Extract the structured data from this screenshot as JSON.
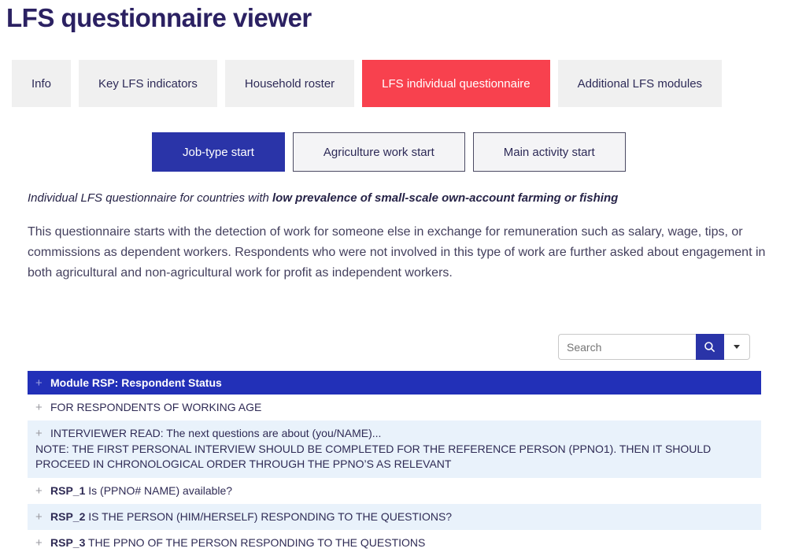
{
  "page": {
    "title": "LFS questionnaire viewer"
  },
  "tabs": [
    {
      "label": "Info",
      "active": false
    },
    {
      "label": "Key LFS indicators",
      "active": false
    },
    {
      "label": "Household roster",
      "active": false
    },
    {
      "label": "LFS individual questionnaire",
      "active": true
    },
    {
      "label": "Additional LFS modules",
      "active": false
    }
  ],
  "start_buttons": [
    {
      "label": "Job-type start",
      "active": true
    },
    {
      "label": "Agriculture work start",
      "active": false
    },
    {
      "label": "Main activity start",
      "active": false
    }
  ],
  "intro": {
    "lead_regular": "Individual LFS questionnaire for countries with ",
    "lead_bold": "low prevalence of small-scale own-account farming or fishing",
    "paragraph": "This questionnaire starts with the detection of work for someone else in exchange for remuneration such as salary, wage, tips, or commissions as dependent workers. Respondents who were not involved in this type of work are further asked about engagement in both agricultural and non-agricultural work for profit as independent workers."
  },
  "search": {
    "placeholder": "Search",
    "button_icon": "magnifier",
    "dropdown_icon": "caret-down"
  },
  "question_list": {
    "expand_symbol": "+",
    "rows": [
      {
        "style": "module",
        "code": "Module RSP: Respondent Status",
        "text": "",
        "note": ""
      },
      {
        "style": "plain",
        "code": "",
        "text": "FOR RESPONDENTS OF WORKING AGE",
        "note": ""
      },
      {
        "style": "shade",
        "code": "",
        "text": "INTERVIEWER READ: The next questions are about (you/NAME)...",
        "note": "NOTE: THE FIRST PERSONAL INTERVIEW SHOULD BE COMPLETED FOR THE REFERENCE PERSON (PPNO1). THEN IT SHOULD PROCEED IN CHRONOLOGICAL ORDER THROUGH THE PPNO’S AS RELEVANT"
      },
      {
        "style": "plain",
        "code": "RSP_1",
        "text": "Is (PPNO# NAME) available?",
        "note": ""
      },
      {
        "style": "shade",
        "code": "RSP_2",
        "text": "IS THE PERSON (HIM/HERSELF) RESPONDING TO THE QUESTIONS?",
        "note": ""
      },
      {
        "style": "plain",
        "code": "RSP_3",
        "text": "THE PPNO OF THE PERSON RESPONDING TO THE QUESTIONS",
        "note": ""
      }
    ]
  },
  "colors": {
    "title": "#2b2162",
    "accent_red": "#f8414e",
    "accent_blue": "#2a34a8",
    "module_header_blue": "#2230b8",
    "row_shade_blue": "#e9f2fb",
    "tab_gray": "#f0f0f0"
  }
}
